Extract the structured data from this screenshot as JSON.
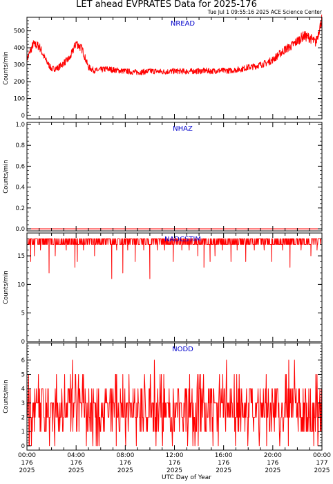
{
  "header": {
    "title": "LET ahead EVPRATES Data for 2025-176",
    "timestamp": "Tue Jul  1 09:55:16 2025 ACE Science Center"
  },
  "xaxis": {
    "label": "UTC Day of Year",
    "ticks": [
      {
        "hour": 0,
        "lines": [
          "00:00",
          "176",
          "2025"
        ]
      },
      {
        "hour": 4,
        "lines": [
          "04:00",
          "176",
          "2025"
        ]
      },
      {
        "hour": 8,
        "lines": [
          "08:00",
          "176",
          "2025"
        ]
      },
      {
        "hour": 12,
        "lines": [
          "12:00",
          "176",
          "2025"
        ]
      },
      {
        "hour": 16,
        "lines": [
          "16:00",
          "176",
          "2025"
        ]
      },
      {
        "hour": 20,
        "lines": [
          "20:00",
          "176",
          "2025"
        ]
      },
      {
        "hour": 24,
        "lines": [
          "00:00",
          "177",
          "2025"
        ]
      }
    ]
  },
  "colors": {
    "series": "#ff0000",
    "panel_title": "#0000cc",
    "axes": "#000000"
  },
  "chart_data": [
    {
      "type": "line",
      "title": "NREAD",
      "ylabel": "Counts/min",
      "xlim": [
        0,
        24
      ],
      "ylim": [
        -20,
        580
      ],
      "yticks": [
        0,
        100,
        200,
        300,
        400,
        500
      ],
      "x": [
        0,
        0.5,
        1,
        1.5,
        2,
        2.5,
        3,
        3.5,
        4,
        4.5,
        5,
        5.5,
        6,
        6.5,
        7,
        7.5,
        8,
        8.5,
        9,
        9.5,
        10,
        10.5,
        11,
        11.5,
        12,
        12.5,
        13,
        13.5,
        14,
        14.5,
        15,
        15.5,
        16,
        16.5,
        17,
        17.5,
        18,
        18.5,
        19,
        19.5,
        20,
        20.5,
        21,
        21.5,
        22,
        22.5,
        23,
        23.5,
        24
      ],
      "values": [
        330,
        420,
        410,
        330,
        275,
        280,
        310,
        340,
        430,
        390,
        285,
        265,
        270,
        275,
        270,
        265,
        262,
        258,
        255,
        258,
        262,
        262,
        258,
        260,
        262,
        262,
        260,
        262,
        262,
        265,
        262,
        265,
        265,
        265,
        270,
        275,
        285,
        290,
        300,
        310,
        330,
        360,
        390,
        410,
        440,
        470,
        460,
        430,
        570
      ],
      "noise": 18
    },
    {
      "type": "line",
      "title": "NHAZ",
      "ylabel": "Counts/min",
      "xlim": [
        0,
        24
      ],
      "ylim": [
        -0.02,
        1.02
      ],
      "yticks": [
        0.0,
        0.2,
        0.4,
        0.6,
        0.8,
        1.0
      ],
      "x": [
        0,
        24
      ],
      "values": [
        0,
        0
      ]
    },
    {
      "type": "line",
      "title": "NADCSTIM",
      "ylabel": "Counts/min",
      "xlim": [
        0,
        24
      ],
      "ylim": [
        0,
        19
      ],
      "yticks": [
        0,
        5,
        10,
        15
      ],
      "baseline": 18,
      "drops": [
        [
          0.3,
          14
        ],
        [
          0.6,
          15
        ],
        [
          1.1,
          16
        ],
        [
          1.8,
          12
        ],
        [
          2.3,
          15
        ],
        [
          3.2,
          16
        ],
        [
          3.9,
          13
        ],
        [
          4.1,
          14
        ],
        [
          4.6,
          16
        ],
        [
          5.5,
          15
        ],
        [
          6.1,
          17
        ],
        [
          6.9,
          11
        ],
        [
          7.3,
          16
        ],
        [
          7.8,
          12
        ],
        [
          8.2,
          16
        ],
        [
          8.8,
          14
        ],
        [
          9.5,
          16
        ],
        [
          10.0,
          11
        ],
        [
          10.6,
          16
        ],
        [
          11.2,
          16
        ],
        [
          11.9,
          14
        ],
        [
          12.6,
          16
        ],
        [
          13.2,
          16
        ],
        [
          13.9,
          15
        ],
        [
          14.4,
          13
        ],
        [
          14.9,
          14
        ],
        [
          15.3,
          15
        ],
        [
          15.9,
          16
        ],
        [
          16.6,
          14
        ],
        [
          17.1,
          16
        ],
        [
          17.8,
          14
        ],
        [
          18.5,
          16
        ],
        [
          19.3,
          16
        ],
        [
          19.9,
          14
        ],
        [
          20.8,
          16
        ],
        [
          21.4,
          13
        ],
        [
          22.3,
          16
        ],
        [
          23.1,
          15
        ],
        [
          23.6,
          16
        ]
      ]
    },
    {
      "type": "line",
      "title": "NODD",
      "ylabel": "Counts/min",
      "xlim": [
        0,
        24
      ],
      "ylim": [
        -0.3,
        7.2
      ],
      "yticks": [
        0,
        1,
        2,
        3,
        4,
        5,
        6
      ],
      "value_range": [
        0,
        7
      ]
    }
  ]
}
